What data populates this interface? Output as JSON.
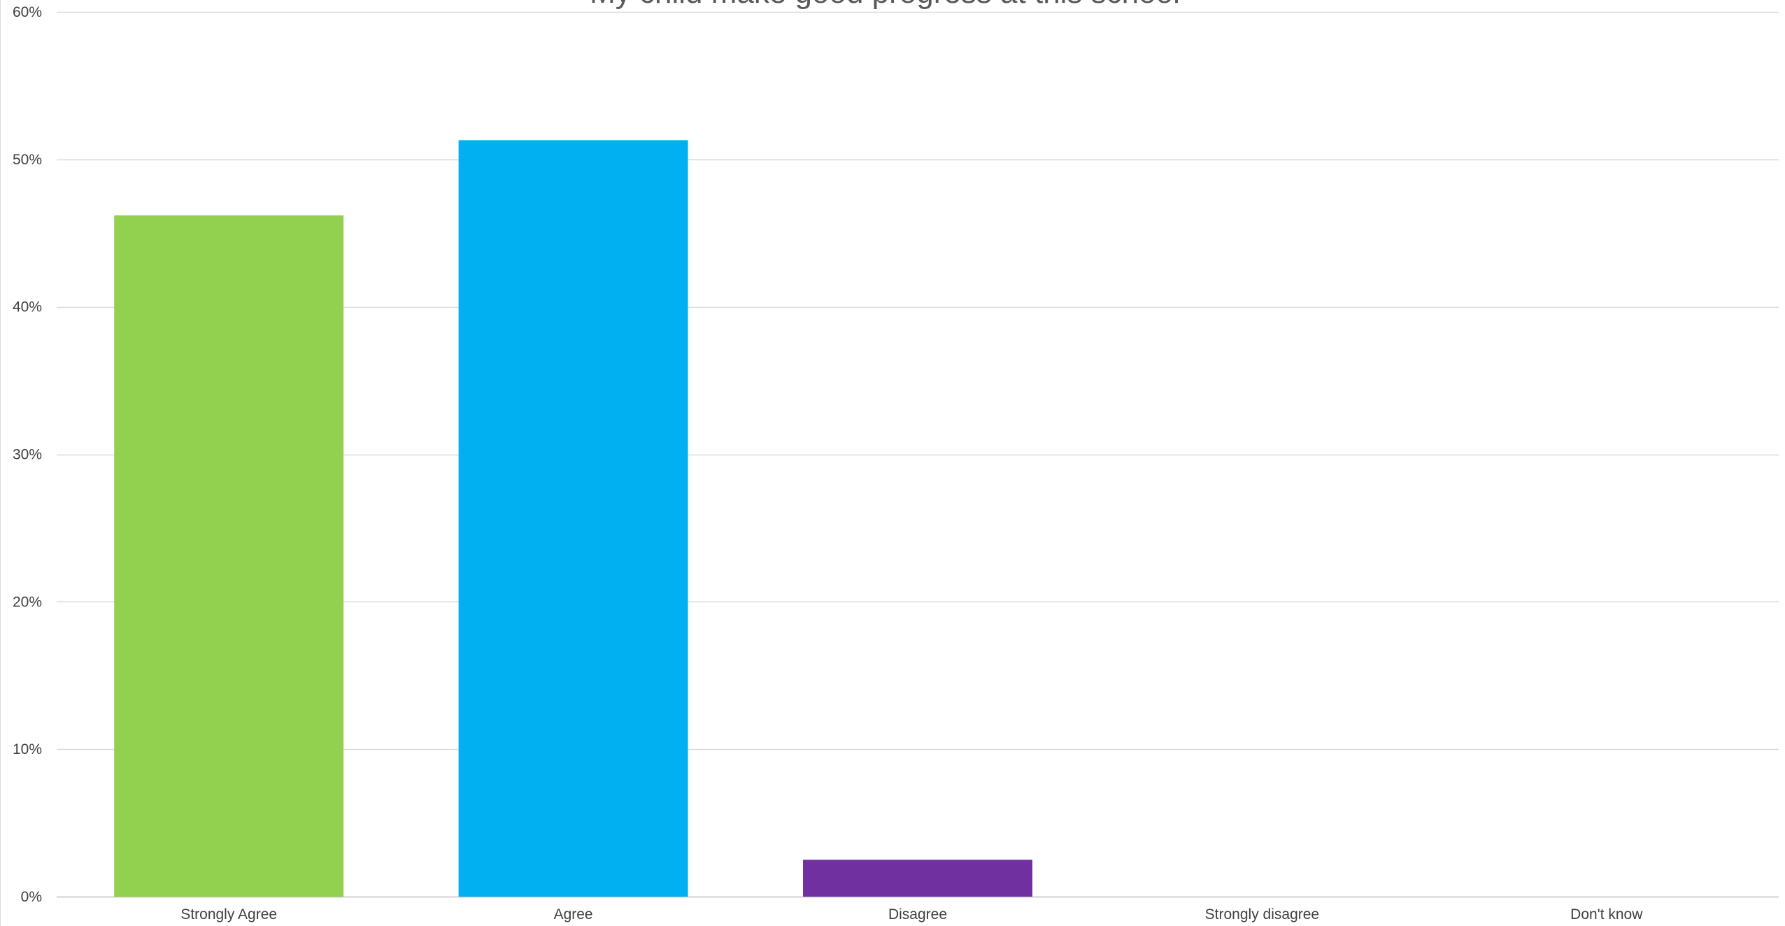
{
  "chart_data": {
    "type": "bar",
    "title": "My child make good progress at this school",
    "xlabel": "",
    "ylabel": "",
    "categories": [
      "Strongly Agree",
      "Agree",
      "Disagree",
      "Strongly disagree",
      "Don't know"
    ],
    "values": [
      0.462,
      0.513,
      0.025,
      0.0,
      0.0
    ],
    "ylim": [
      0,
      0.6
    ],
    "y_ticks": [
      0,
      0.1,
      0.2,
      0.3,
      0.4,
      0.5,
      0.6
    ],
    "y_tick_labels": [
      "0%",
      "10%",
      "20%",
      "30%",
      "40%",
      "50%",
      "60%"
    ],
    "bar_colors": [
      "#92d050",
      "#00b0f0",
      "#7030a0",
      "#ffc000",
      "#a5a5a5"
    ],
    "gridlines": true,
    "legend": "none",
    "colors": {
      "gridline": "#d9d9d9",
      "axis": "#bfbfbf",
      "text": "#404040",
      "title": "#595959"
    }
  }
}
